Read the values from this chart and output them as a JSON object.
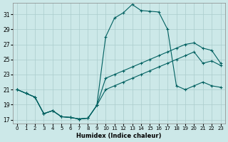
{
  "xlabel": "Humidex (Indice chaleur)",
  "bg_color": "#cce8e8",
  "grid_color": "#aacccc",
  "line_color": "#006060",
  "xlim": [
    -0.5,
    23.5
  ],
  "ylim": [
    16.5,
    32.5
  ],
  "yticks": [
    17,
    19,
    21,
    23,
    25,
    27,
    29,
    31
  ],
  "xticks": [
    0,
    1,
    2,
    3,
    4,
    5,
    6,
    7,
    8,
    9,
    10,
    11,
    12,
    13,
    14,
    15,
    16,
    17,
    18,
    19,
    20,
    21,
    22,
    23
  ],
  "line1_x": [
    0,
    1,
    2,
    3,
    4,
    5,
    6,
    7,
    8,
    9,
    10,
    11,
    12,
    13,
    14,
    15,
    16,
    17,
    18,
    19,
    20,
    21,
    22,
    23
  ],
  "line1_y": [
    21.0,
    20.5,
    20.0,
    17.8,
    18.2,
    17.4,
    17.3,
    17.1,
    17.2,
    18.9,
    28.0,
    30.5,
    31.2,
    32.3,
    31.5,
    31.4,
    31.3,
    29.0,
    21.5,
    21.0,
    21.5,
    22.0,
    21.5,
    21.3
  ],
  "line2_x": [
    0,
    1,
    2,
    3,
    4,
    5,
    6,
    7,
    8,
    9,
    10,
    11,
    12,
    13,
    14,
    15,
    16,
    17,
    18,
    19,
    20,
    21,
    22,
    23
  ],
  "line2_y": [
    21.0,
    20.5,
    20.0,
    17.8,
    18.2,
    17.4,
    17.3,
    17.1,
    17.2,
    18.9,
    22.5,
    23.0,
    23.5,
    24.0,
    24.5,
    25.0,
    25.5,
    26.0,
    26.5,
    27.0,
    27.2,
    26.5,
    26.2,
    24.5
  ],
  "line3_x": [
    0,
    1,
    2,
    3,
    4,
    5,
    6,
    7,
    8,
    9,
    10,
    11,
    12,
    13,
    14,
    15,
    16,
    17,
    18,
    19,
    20,
    21,
    22,
    23
  ],
  "line3_y": [
    21.0,
    20.5,
    20.0,
    17.8,
    18.2,
    17.4,
    17.3,
    17.1,
    17.2,
    18.9,
    21.0,
    21.5,
    22.0,
    22.5,
    23.0,
    23.5,
    24.0,
    24.5,
    25.0,
    25.5,
    26.0,
    24.5,
    24.8,
    24.2
  ]
}
